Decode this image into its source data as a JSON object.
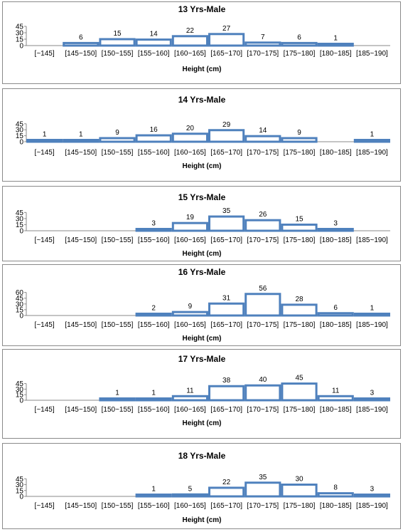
{
  "categories": [
    "[~145]",
    "[145~150]",
    "[150~155]",
    "[155~160]",
    "[160~165]",
    "[165~170]",
    "[170~175]",
    "[175~180]",
    "[180~185]",
    "[185~190]"
  ],
  "colors": {
    "bar_fill": "#ffffff",
    "bar_stroke": "#4f81bd",
    "axis": "#888888",
    "panel_border": "#8a8a8a"
  },
  "chart_data": [
    {
      "type": "bar",
      "title": "13 Yrs-Male",
      "xlabel": "Height (cm)",
      "ylabel": "",
      "yticks": [
        "45",
        "30",
        "15",
        "0"
      ],
      "ylim": [
        0,
        45
      ],
      "categories": [
        "[~145]",
        "[145~150]",
        "[150~155]",
        "[155~160]",
        "[160~165]",
        "[165~170]",
        "[170~175]",
        "[175~180]",
        "[180~185]",
        "[185~190]"
      ],
      "values": [
        null,
        6,
        15,
        14,
        22,
        27,
        7,
        6,
        1,
        null
      ],
      "labels": [
        "",
        "6",
        "15",
        "14",
        "22",
        "27",
        "7",
        "6",
        "1",
        ""
      ]
    },
    {
      "type": "bar",
      "title": "14 Yrs-Male",
      "xlabel": "Height (cm)",
      "ylabel": "",
      "yticks": [
        "45",
        "30",
        "15",
        "0"
      ],
      "ylim": [
        0,
        45
      ],
      "categories": [
        "[~145]",
        "[145~150]",
        "[150~155]",
        "[155~160]",
        "[160~165]",
        "[165~170]",
        "[170~175]",
        "[175~180]",
        "[180~185]",
        "[185~190]"
      ],
      "values": [
        1,
        1,
        9,
        16,
        20,
        29,
        14,
        9,
        null,
        1
      ],
      "labels": [
        "1",
        "1",
        "9",
        "16",
        "20",
        "29",
        "14",
        "9",
        "",
        "1"
      ]
    },
    {
      "type": "bar",
      "title": "15 Yrs-Male",
      "xlabel": "Height (cm)",
      "ylabel": "",
      "yticks": [
        "45",
        "30",
        "15",
        "0"
      ],
      "ylim": [
        0,
        45
      ],
      "categories": [
        "[~145]",
        "[145~150]",
        "[150~155]",
        "[155~160]",
        "[160~165]",
        "[165~170]",
        "[170~175]",
        "[175~180]",
        "[180~185]",
        "[185~190]"
      ],
      "values": [
        null,
        null,
        null,
        3,
        19,
        35,
        26,
        15,
        3,
        null
      ],
      "labels": [
        "",
        "",
        "",
        "3",
        "19",
        "35",
        "26",
        "15",
        "3",
        ""
      ]
    },
    {
      "type": "bar",
      "title": "16 Yrs-Male",
      "xlabel": "Height (cm)",
      "ylabel": "",
      "yticks": [
        "60",
        "45",
        "30",
        "15",
        "0"
      ],
      "ylim": [
        0,
        60
      ],
      "categories": [
        "[~145]",
        "[145~150]",
        "[150~155]",
        "[155~160]",
        "[160~165]",
        "[165~170]",
        "[170~175]",
        "[175~180]",
        "[180~185]",
        "[185~190]"
      ],
      "values": [
        null,
        null,
        null,
        2,
        9,
        31,
        56,
        28,
        6,
        1
      ],
      "labels": [
        "",
        "",
        "",
        "2",
        "9",
        "31",
        "56",
        "28",
        "6",
        "1"
      ]
    },
    {
      "type": "bar",
      "title": "17 Yrs-Male",
      "xlabel": "Height (cm)",
      "ylabel": "",
      "yticks": [
        "45",
        "30",
        "15",
        "0"
      ],
      "ylim": [
        0,
        45
      ],
      "categories": [
        "[~145]",
        "[145~150]",
        "[150~155]",
        "[155~160]",
        "[160~165]",
        "[165~170]",
        "[170~175]",
        "[175~180]",
        "[180~185]",
        "[185~190]"
      ],
      "values": [
        null,
        null,
        1,
        1,
        11,
        38,
        40,
        45,
        11,
        3
      ],
      "labels": [
        "",
        "",
        "1",
        "1",
        "11",
        "38",
        "40",
        "45",
        "11",
        "3"
      ]
    },
    {
      "type": "bar",
      "title": "18 Yrs-Male",
      "xlabel": "Height (cm)",
      "ylabel": "",
      "yticks": [
        "45",
        "30",
        "15",
        "0"
      ],
      "ylim": [
        0,
        45
      ],
      "categories": [
        "[~145]",
        "[145~150]",
        "[150~155]",
        "[155~160]",
        "[160~165]",
        "[165~170]",
        "[170~175]",
        "[175~180]",
        "[180~185]",
        "[185~190]"
      ],
      "values": [
        null,
        null,
        null,
        1,
        5,
        22,
        35,
        30,
        8,
        3
      ],
      "labels": [
        "",
        "",
        "",
        "1",
        "5",
        "22",
        "35",
        "30",
        "8",
        "3"
      ]
    }
  ]
}
